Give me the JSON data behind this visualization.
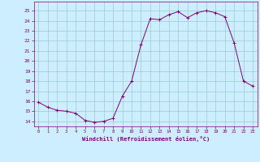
{
  "x": [
    0,
    1,
    2,
    3,
    4,
    5,
    6,
    7,
    8,
    9,
    10,
    11,
    12,
    13,
    14,
    15,
    16,
    17,
    18,
    19,
    20,
    21,
    22,
    23
  ],
  "y": [
    15.9,
    15.4,
    15.1,
    15.0,
    14.8,
    14.1,
    13.9,
    14.0,
    14.3,
    16.5,
    18.0,
    21.6,
    24.2,
    24.1,
    24.6,
    24.9,
    24.3,
    24.8,
    25.0,
    24.8,
    24.4,
    21.8,
    18.0,
    17.5
  ],
  "line_color": "#800080",
  "marker": "+",
  "marker_size": 3,
  "bg_color": "#cceeff",
  "grid_color": "#99cccc",
  "axis_color": "#800080",
  "xlabel": "Windchill (Refroidissement éolien,°C)",
  "ylim": [
    13.5,
    25.9
  ],
  "xlim": [
    -0.5,
    23.5
  ],
  "yticks": [
    14,
    15,
    16,
    17,
    18,
    19,
    20,
    21,
    22,
    23,
    24,
    25
  ],
  "xticks": [
    0,
    1,
    2,
    3,
    4,
    5,
    6,
    7,
    8,
    9,
    10,
    11,
    12,
    13,
    14,
    15,
    16,
    17,
    18,
    19,
    20,
    21,
    22,
    23
  ]
}
